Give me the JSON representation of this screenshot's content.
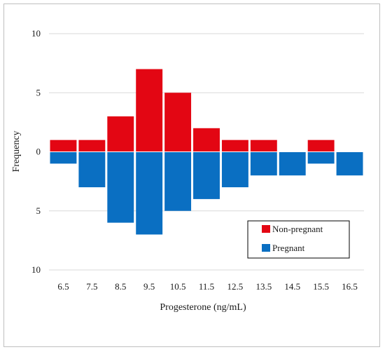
{
  "chart_data": {
    "type": "bar",
    "subtype": "back-to-back histogram (mirrored around zero)",
    "categories": [
      "6.5",
      "7.5",
      "8.5",
      "9.5",
      "10.5",
      "11.5",
      "12.5",
      "13.5",
      "14.5",
      "15.5",
      "16.5"
    ],
    "series": [
      {
        "name": "Non-pregnant",
        "direction": "up",
        "color": "#e30613",
        "values": [
          1,
          1,
          3,
          7,
          5,
          2,
          1,
          1,
          0,
          1,
          0
        ]
      },
      {
        "name": "Pregnant",
        "direction": "down",
        "color": "#0a6fc2",
        "values": [
          1,
          3,
          6,
          7,
          5,
          4,
          3,
          2,
          2,
          1,
          2
        ]
      }
    ],
    "xlabel": "Progesterone (ng/mL)",
    "ylabel": "Frequency",
    "ylim": [
      -10,
      10
    ],
    "yticks": [
      {
        "value": 10,
        "label": "10"
      },
      {
        "value": 5,
        "label": "5"
      },
      {
        "value": 0,
        "label": "0"
      },
      {
        "value": -5,
        "label": "5"
      },
      {
        "value": -10,
        "label": "10"
      }
    ],
    "grid": true,
    "legend_position": "lower-right"
  }
}
